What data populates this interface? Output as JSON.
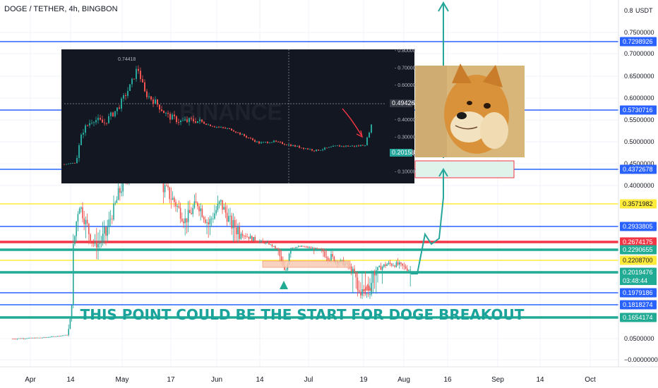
{
  "header": {
    "title": "DOGE / TETHER, 4h, BINGBON"
  },
  "chart_data": {
    "type": "line",
    "title": "DOGE / TETHER, 4h, BINGBON",
    "y_axis": {
      "currency": "USDT",
      "ticks": [
        "0.7500000",
        "0.7000000",
        "0.6500000",
        "0.6000000",
        "0.5500000",
        "0.5000000",
        "0.4500000",
        "0.4000000",
        "0.0500000",
        "−0.0000000"
      ],
      "top_tick": "0.8"
    },
    "x_axis": {
      "ticks": [
        "Apr",
        "14",
        "May",
        "17",
        "Jun",
        "14",
        "Jul",
        "19",
        "Aug",
        "16",
        "Sep",
        "14",
        "Oct"
      ]
    },
    "levels": [
      {
        "label": "0.7298926",
        "value": 0.7298926,
        "color": "#2962ff"
      },
      {
        "label": "0.5730716",
        "value": 0.5730716,
        "color": "#2962ff"
      },
      {
        "label": "0.4372678",
        "value": 0.4372678,
        "color": "#2962ff"
      },
      {
        "label": "0.3571982",
        "value": 0.3571982,
        "color": "#ffeb3b"
      },
      {
        "label": "0.2933805",
        "value": 0.2933805,
        "color": "#2962ff"
      },
      {
        "label": "0.2674175",
        "value": 0.2674175,
        "color": "#f23645"
      },
      {
        "label": "0.2290655",
        "value": 0.2290655,
        "color": "#22ab94"
      },
      {
        "label": "0.2208700",
        "value": 0.22087,
        "color": "#ffeb3b"
      },
      {
        "label": "0.2019476",
        "value": 0.2019476,
        "color": "#22ab94"
      },
      {
        "label": "0.1979186",
        "value": 0.1979186,
        "color": "#2962ff"
      },
      {
        "label": "0.1818274",
        "value": 0.1818274,
        "color": "#2962ff"
      },
      {
        "label": "0.1654174",
        "value": 0.1654174,
        "color": "#22ab94"
      }
    ],
    "countdown": "03:48:44",
    "colors": {
      "up": "#26a69a",
      "down": "#ef5350",
      "projection": "#26a69a",
      "inset_bg": "#131722"
    }
  },
  "inset": {
    "watermark": "BINANCE",
    "high_label": "0.74418",
    "crosshair_label": "0.49426",
    "price_label": "0.20158",
    "ticks": [
      "0.80000",
      "0.70000",
      "0.60000",
      "0.50000",
      "0.40000",
      "0.30000",
      "0.20000",
      "0.10000"
    ]
  },
  "annotation": {
    "text": "THIS POINT COULD BE THE START FOR DOGE BREAKOUT"
  }
}
